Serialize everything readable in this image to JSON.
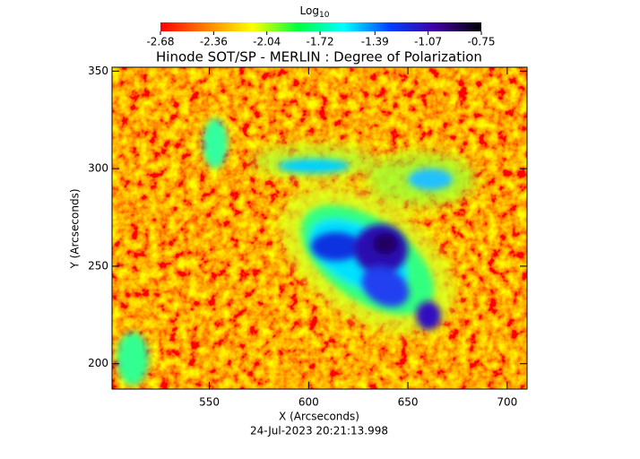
{
  "chart_data": {
    "type": "image",
    "title": "Hinode SOT/SP - MERLIN : Degree of Polarization",
    "x_label": "X (Arcseconds)",
    "y_label": "Y (Arcseconds)",
    "footer": "24-Jul-2023 20:21:13.998",
    "xlim": [
      501,
      710
    ],
    "xticks": [
      550,
      600,
      650,
      700
    ],
    "ylim": [
      187,
      352
    ],
    "yticks": [
      200,
      250,
      300,
      350
    ],
    "colorbar_label": "Log",
    "colorbar_label_subscript": "10",
    "clim": [
      -2.68,
      -0.75
    ],
    "cticks": [
      -2.68,
      -2.36,
      -2.04,
      -1.72,
      -1.39,
      -1.07,
      -0.75
    ],
    "colormap": [
      "#ff0000",
      "#ff8000",
      "#ffff00",
      "#00ff40",
      "#00ffff",
      "#0040ff",
      "#4000a0",
      "#000000"
    ]
  }
}
